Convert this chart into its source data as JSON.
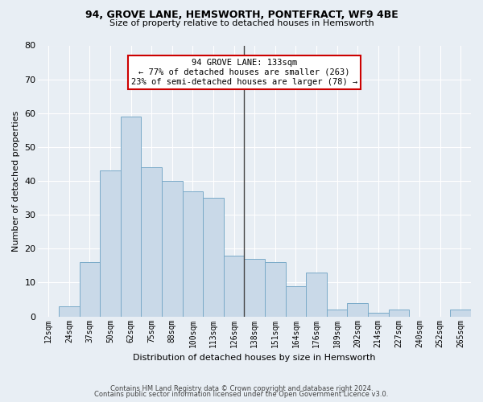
{
  "title_line1": "94, GROVE LANE, HEMSWORTH, PONTEFRACT, WF9 4BE",
  "title_line2": "Size of property relative to detached houses in Hemsworth",
  "xlabel": "Distribution of detached houses by size in Hemsworth",
  "ylabel": "Number of detached properties",
  "bar_labels": [
    "12sqm",
    "24sqm",
    "37sqm",
    "50sqm",
    "62sqm",
    "75sqm",
    "88sqm",
    "100sqm",
    "113sqm",
    "126sqm",
    "138sqm",
    "151sqm",
    "164sqm",
    "176sqm",
    "189sqm",
    "202sqm",
    "214sqm",
    "227sqm",
    "240sqm",
    "252sqm",
    "265sqm"
  ],
  "bar_values": [
    0,
    3,
    16,
    43,
    59,
    44,
    40,
    37,
    35,
    18,
    17,
    16,
    9,
    13,
    2,
    4,
    1,
    2,
    0,
    0,
    2
  ],
  "bar_color": "#c9d9e8",
  "bar_edge_color": "#7aaac8",
  "annotation_title": "94 GROVE LANE: 133sqm",
  "annotation_line2": "← 77% of detached houses are smaller (263)",
  "annotation_line3": "23% of semi-detached houses are larger (78) →",
  "annotation_box_facecolor": "#ffffff",
  "annotation_box_edgecolor": "#cc0000",
  "vline_color": "#444444",
  "ylim": [
    0,
    80
  ],
  "yticks": [
    0,
    10,
    20,
    30,
    40,
    50,
    60,
    70,
    80
  ],
  "background_color": "#e8eef4",
  "grid_color": "#ffffff",
  "footer_line1": "Contains HM Land Registry data © Crown copyright and database right 2024.",
  "footer_line2": "Contains public sector information licensed under the Open Government Licence v3.0."
}
